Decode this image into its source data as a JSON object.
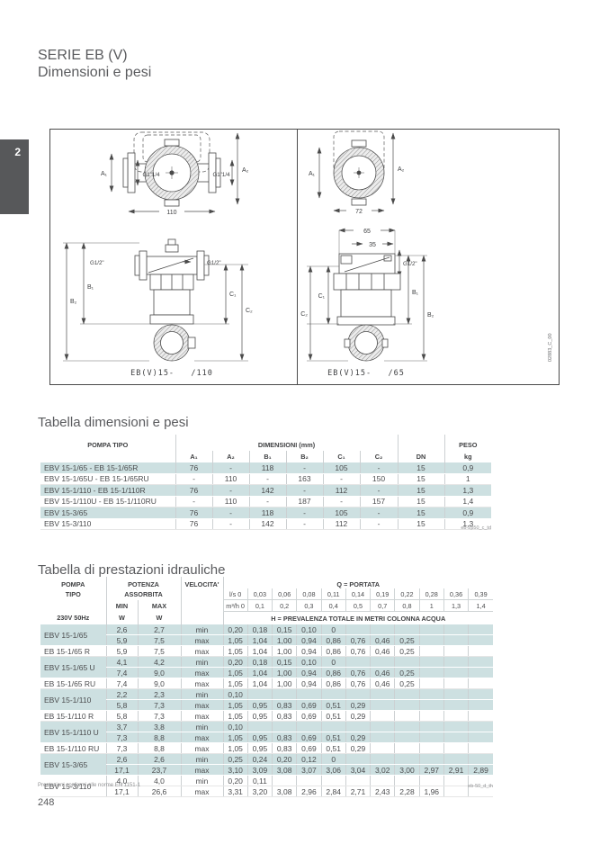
{
  "page": {
    "chapter_tab": "2",
    "title_line1": "SERIE EB (V)",
    "title_line2": "Dimensioni e pesi",
    "footer_note": "Prestazioni conformi alle norme EN 1151-1",
    "footer_code": "eb-50_d_th",
    "page_number": "248"
  },
  "diagrams": {
    "left": {
      "caption": "EB(V)15-   /110",
      "labels": {
        "a1": "A₁",
        "a2": "A₂",
        "b1": "B₁",
        "b2": "B₂",
        "c1": "C₁",
        "c2": "C₂",
        "g114_left": "G1\"1/4",
        "g114_right": "G1\"1/4",
        "g12_left": "G1/2\"",
        "g12_right": "G1/2\"",
        "dim_width": "110"
      }
    },
    "right": {
      "caption": "EB(V)15-   /65",
      "labels": {
        "a1": "A₁",
        "a2": "A₂",
        "b1": "B₁",
        "b2": "B₂",
        "c1": "C₁",
        "c2": "C₂",
        "g12": "G1/2\"",
        "dim_width": "72",
        "dim_65": "65",
        "dim_35": "35"
      },
      "code_vertical": "02883_C_00"
    }
  },
  "dim_section": {
    "heading": "Tabella dimensioni e pesi",
    "table": {
      "group_headers": {
        "pompa": "POMPA TIPO",
        "dimensioni": "DIMENSIONI  (mm)",
        "peso": "PESO"
      },
      "columns": [
        "A₁",
        "A₂",
        "B₁",
        "B₂",
        "C₁",
        "C₂",
        "DN",
        "kg"
      ],
      "rows": [
        {
          "name": "EBV 15-1/65 - EB 15-1/65R",
          "shaded": true,
          "values": [
            "76",
            "-",
            "118",
            "-",
            "105",
            "-",
            "15",
            "0,9"
          ]
        },
        {
          "name": "EBV 15-1/65U - EB 15-1/65RU",
          "shaded": false,
          "values": [
            "-",
            "110",
            "-",
            "163",
            "-",
            "150",
            "15",
            "1"
          ]
        },
        {
          "name": "EBV 15-1/110 - EB 15-1/110R",
          "shaded": true,
          "values": [
            "76",
            "-",
            "142",
            "-",
            "112",
            "-",
            "15",
            "1,3"
          ]
        },
        {
          "name": "EBV 15-1/110U - EB 15-1/110RU",
          "shaded": false,
          "values": [
            "-",
            "110",
            "-",
            "187",
            "-",
            "157",
            "15",
            "1,4"
          ]
        },
        {
          "name": "EBV 15-3/65",
          "shaded": true,
          "values": [
            "76",
            "-",
            "118",
            "-",
            "105",
            "-",
            "15",
            "0,9"
          ]
        },
        {
          "name": "EBV 15-3/110",
          "shaded": false,
          "values": [
            "76",
            "-",
            "142",
            "-",
            "112",
            "-",
            "15",
            "1,3"
          ]
        }
      ],
      "footnote": "eb-2p50_c_td"
    }
  },
  "perf_section": {
    "heading": "Tabella di prestazioni idrauliche",
    "table": {
      "headers": {
        "pompa": "POMPA",
        "tipo": "TIPO",
        "supply": "230V 50Hz",
        "potenza": "POTENZA",
        "assorbita": "ASSORBITA",
        "min": "MIN",
        "max": "MAX",
        "w": "W",
        "velocita": "VELOCITA'",
        "portata": "Q = PORTATA",
        "ls_label": "l/s",
        "m3h_label": "m³/h",
        "prevalenza": "H = PREVALENZA TOTALE IN METRI COLONNA ACQUA"
      },
      "ls_values": [
        "0",
        "0,03",
        "0,06",
        "0,08",
        "0,11",
        "0,14",
        "0,19",
        "0,22",
        "0,28",
        "0,36",
        "0,39"
      ],
      "m3h_values": [
        "0",
        "0,1",
        "0,2",
        "0,3",
        "0,4",
        "0,5",
        "0,7",
        "0,8",
        "1",
        "1,3",
        "1,4"
      ],
      "groups": [
        {
          "name": "EBV 15-1/65",
          "shaded": true,
          "rows": [
            {
              "min": "2,6",
              "max": "2,7",
              "speed": "min",
              "values": [
                "0,20",
                "0,18",
                "0,15",
                "0,10",
                "0"
              ]
            },
            {
              "min": "5,9",
              "max": "7,5",
              "speed": "max",
              "values": [
                "1,05",
                "1,04",
                "1,00",
                "0,94",
                "0,86",
                "0,76",
                "0,46",
                "0,25"
              ]
            }
          ]
        },
        {
          "name": "EB 15-1/65 R",
          "shaded": false,
          "rows": [
            {
              "min": "5,9",
              "max": "7,5",
              "speed": "max",
              "values": [
                "1,05",
                "1,04",
                "1,00",
                "0,94",
                "0,86",
                "0,76",
                "0,46",
                "0,25"
              ]
            }
          ]
        },
        {
          "name": "EBV 15-1/65 U",
          "shaded": true,
          "rows": [
            {
              "min": "4,1",
              "max": "4,2",
              "speed": "min",
              "values": [
                "0,20",
                "0,18",
                "0,15",
                "0,10",
                "0"
              ]
            },
            {
              "min": "7,4",
              "max": "9,0",
              "speed": "max",
              "values": [
                "1,05",
                "1,04",
                "1,00",
                "0,94",
                "0,86",
                "0,76",
                "0,46",
                "0,25"
              ]
            }
          ]
        },
        {
          "name": "EB 15-1/65 RU",
          "shaded": false,
          "rows": [
            {
              "min": "7,4",
              "max": "9,0",
              "speed": "max",
              "values": [
                "1,05",
                "1,04",
                "1,00",
                "0,94",
                "0,86",
                "0,76",
                "0,46",
                "0,25"
              ]
            }
          ]
        },
        {
          "name": "EBV 15-1/110",
          "shaded": true,
          "rows": [
            {
              "min": "2,2",
              "max": "2,3",
              "speed": "min",
              "values": [
                "0,10"
              ]
            },
            {
              "min": "5,8",
              "max": "7,3",
              "speed": "max",
              "values": [
                "1,05",
                "0,95",
                "0,83",
                "0,69",
                "0,51",
                "0,29"
              ]
            }
          ]
        },
        {
          "name": "EB 15-1/110 R",
          "shaded": false,
          "rows": [
            {
              "min": "5,8",
              "max": "7,3",
              "speed": "max",
              "values": [
                "1,05",
                "0,95",
                "0,83",
                "0,69",
                "0,51",
                "0,29"
              ]
            }
          ]
        },
        {
          "name": "EBV 15-1/110 U",
          "shaded": true,
          "rows": [
            {
              "min": "3,7",
              "max": "3,8",
              "speed": "min",
              "values": [
                "0,10"
              ]
            },
            {
              "min": "7,3",
              "max": "8,8",
              "speed": "max",
              "values": [
                "1,05",
                "0,95",
                "0,83",
                "0,69",
                "0,51",
                "0,29"
              ]
            }
          ]
        },
        {
          "name": "EB 15-1/110 RU",
          "shaded": false,
          "rows": [
            {
              "min": "7,3",
              "max": "8,8",
              "speed": "max",
              "values": [
                "1,05",
                "0,95",
                "0,83",
                "0,69",
                "0,51",
                "0,29"
              ]
            }
          ]
        },
        {
          "name": "EBV 15-3/65",
          "shaded": true,
          "rows": [
            {
              "min": "2,6",
              "max": "2,6",
              "speed": "min",
              "values": [
                "0,25",
                "0,24",
                "0,20",
                "0,12",
                "0"
              ]
            },
            {
              "min": "17,1",
              "max": "23,7",
              "speed": "max",
              "values": [
                "3,10",
                "3,09",
                "3,08",
                "3,07",
                "3,06",
                "3,04",
                "3,02",
                "3,00",
                "2,97",
                "2,91",
                "2,89"
              ]
            }
          ]
        },
        {
          "name": "EBV 15-3/110",
          "shaded": false,
          "rows": [
            {
              "min": "4,0",
              "max": "4,0",
              "speed": "min",
              "values": [
                "0,20",
                "0,11"
              ]
            },
            {
              "min": "17,1",
              "max": "26,6",
              "speed": "max",
              "values": [
                "3,31",
                "3,20",
                "3,08",
                "2,96",
                "2,84",
                "2,71",
                "2,43",
                "2,28",
                "1,96"
              ]
            }
          ]
        }
      ]
    }
  },
  "colors": {
    "row_shade": "#cde0e1",
    "tab_bg": "#57585a",
    "text": "#4b4c4e"
  }
}
